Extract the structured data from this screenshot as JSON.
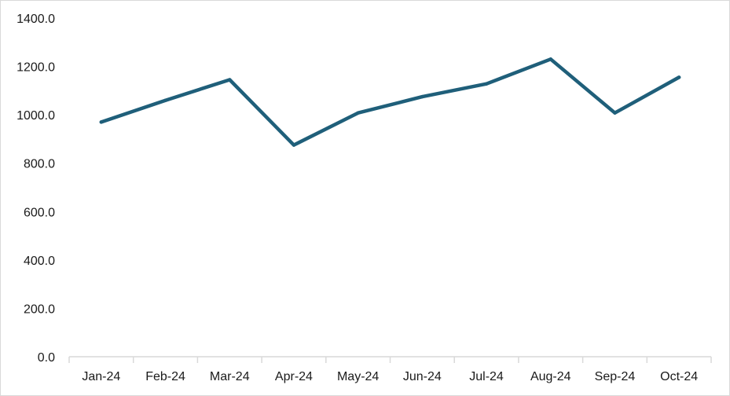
{
  "chart_data": {
    "type": "line",
    "title": "",
    "xlabel": "",
    "ylabel": "",
    "categories": [
      "Jan-24",
      "Feb-24",
      "Mar-24",
      "Apr-24",
      "May-24",
      "Jun-24",
      "Jul-24",
      "Aug-24",
      "Sep-24",
      "Oct-24"
    ],
    "series": [
      {
        "values": [
          970,
          1060,
          1145,
          875,
          1008,
          1075,
          1128,
          1230,
          1008,
          1155
        ]
      }
    ],
    "ylim": [
      0,
      1400
    ],
    "yticks": [
      "0.0",
      "200.0",
      "400.0",
      "600.0",
      "800.0",
      "1000.0",
      "1200.0",
      "1400.0"
    ],
    "grid": false,
    "legend": "none",
    "colors": {
      "line": "#1f5f7a",
      "axis": "#d9d9d9",
      "text": "#1a1a1a"
    }
  }
}
